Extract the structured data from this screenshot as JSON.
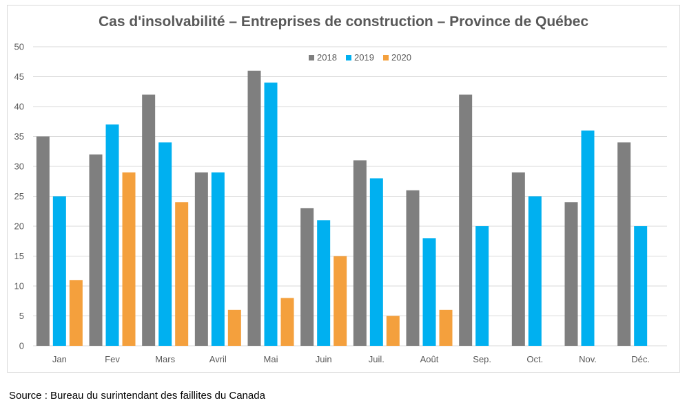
{
  "chart_data": {
    "type": "bar",
    "title": "Cas d'insolvabilité – Entreprises de construction – Province de Québec",
    "xlabel": "",
    "ylabel": "",
    "ylim": [
      0,
      50
    ],
    "yticks": [
      0,
      5,
      10,
      15,
      20,
      25,
      30,
      35,
      40,
      45,
      50
    ],
    "grid": true,
    "legend_position": "top-center",
    "categories": [
      "Jan",
      "Fev",
      "Mars",
      "Avril",
      "Mai",
      "Juin",
      "Juil.",
      "Août",
      "Sep.",
      "Oct.",
      "Nov.",
      "Déc."
    ],
    "series": [
      {
        "name": "2018",
        "color": "#7f7f7f",
        "values": [
          35,
          32,
          42,
          29,
          46,
          23,
          31,
          26,
          42,
          29,
          24,
          34
        ]
      },
      {
        "name": "2019",
        "color": "#00b0f0",
        "values": [
          25,
          37,
          34,
          29,
          44,
          21,
          28,
          18,
          20,
          25,
          36,
          20
        ]
      },
      {
        "name": "2020",
        "color": "#f4a03d",
        "values": [
          11,
          29,
          24,
          6,
          8,
          15,
          5,
          6,
          null,
          null,
          null,
          null
        ]
      }
    ]
  },
  "footer": {
    "source": "Source : Bureau du surintendant des faillites du Canada"
  }
}
